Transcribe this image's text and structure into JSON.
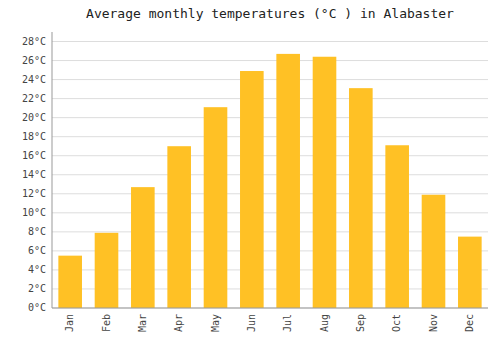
{
  "chart_data": {
    "type": "bar",
    "title": "Average monthly temperatures (°C ) in Alabaster",
    "categories": [
      "Jan",
      "Feb",
      "Mar",
      "Apr",
      "May",
      "Jun",
      "Jul",
      "Aug",
      "Sep",
      "Oct",
      "Nov",
      "Dec"
    ],
    "values": [
      5.5,
      7.9,
      12.7,
      17.0,
      21.1,
      24.9,
      26.7,
      26.4,
      23.1,
      17.1,
      11.9,
      7.5
    ],
    "color": "#FFC125",
    "ylim": [
      0,
      29
    ],
    "yticks": [
      {
        "value": 0,
        "label": "0°C"
      },
      {
        "value": 2,
        "label": "2°C"
      },
      {
        "value": 4,
        "label": "4°C"
      },
      {
        "value": 6,
        "label": "6°C"
      },
      {
        "value": 8,
        "label": "8°C"
      },
      {
        "value": 10,
        "label": "10°C"
      },
      {
        "value": 12,
        "label": "12°C"
      },
      {
        "value": 14,
        "label": "14°C"
      },
      {
        "value": 16,
        "label": "16°C"
      },
      {
        "value": 18,
        "label": "18°C"
      },
      {
        "value": 20,
        "label": "20°C"
      },
      {
        "value": 22,
        "label": "22°C"
      },
      {
        "value": 24,
        "label": "24°C"
      },
      {
        "value": 26,
        "label": "26°C"
      },
      {
        "value": 28,
        "label": "28°C"
      }
    ],
    "grid": true
  }
}
